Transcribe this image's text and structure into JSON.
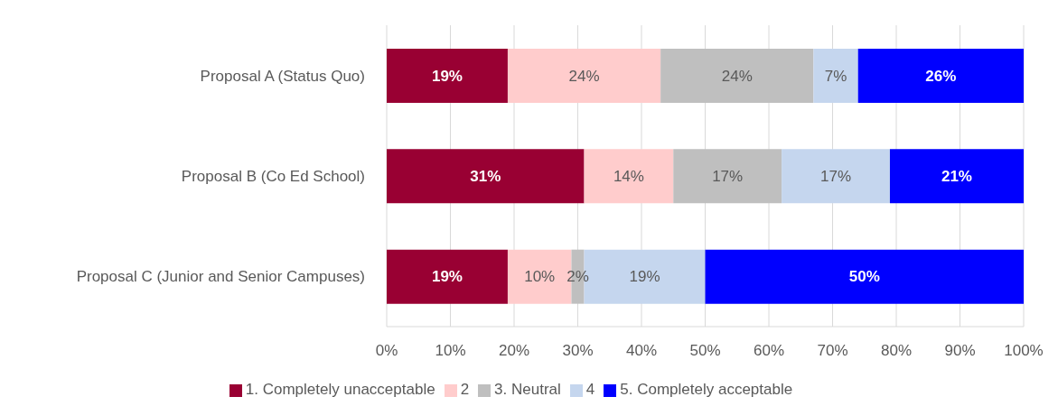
{
  "chart_data": {
    "type": "bar",
    "orientation": "horizontal",
    "stacked": true,
    "categories": [
      "Proposal A (Status Quo)",
      "Proposal B (Co Ed School)",
      "Proposal C (Junior and Senior Campuses)"
    ],
    "series": [
      {
        "name": "1. Completely unacceptable",
        "color": "#990033",
        "values": [
          19,
          31,
          19
        ],
        "value_labels": [
          "19%",
          "31%",
          "19%"
        ]
      },
      {
        "name": "2",
        "color": "#ffcccc",
        "values": [
          24,
          14,
          10
        ],
        "value_labels": [
          "24%",
          "14%",
          "10%"
        ]
      },
      {
        "name": "3. Neutral",
        "color": "#bfbfbf",
        "values": [
          24,
          17,
          2
        ],
        "value_labels": [
          "24%",
          "17%",
          "2%"
        ]
      },
      {
        "name": "4",
        "color": "#c5d6ee",
        "values": [
          7,
          17,
          19
        ],
        "value_labels": [
          "7%",
          "17%",
          "19%"
        ]
      },
      {
        "name": "5. Completely acceptable",
        "color": "#0000ff",
        "values": [
          26,
          21,
          50
        ],
        "value_labels": [
          "26%",
          "21%",
          "50%"
        ]
      }
    ],
    "xlim": [
      0,
      100
    ],
    "xticks": [
      {
        "value": 0,
        "label": "0%"
      },
      {
        "value": 10,
        "label": "10%"
      },
      {
        "value": 20,
        "label": "20%"
      },
      {
        "value": 30,
        "label": "30%"
      },
      {
        "value": 40,
        "label": "40%"
      },
      {
        "value": 50,
        "label": "50%"
      },
      {
        "value": 60,
        "label": "60%"
      },
      {
        "value": 70,
        "label": "70%"
      },
      {
        "value": 80,
        "label": "80%"
      },
      {
        "value": 90,
        "label": "90%"
      },
      {
        "value": 100,
        "label": "100%"
      }
    ],
    "grid": "x",
    "legend": "bottom"
  }
}
